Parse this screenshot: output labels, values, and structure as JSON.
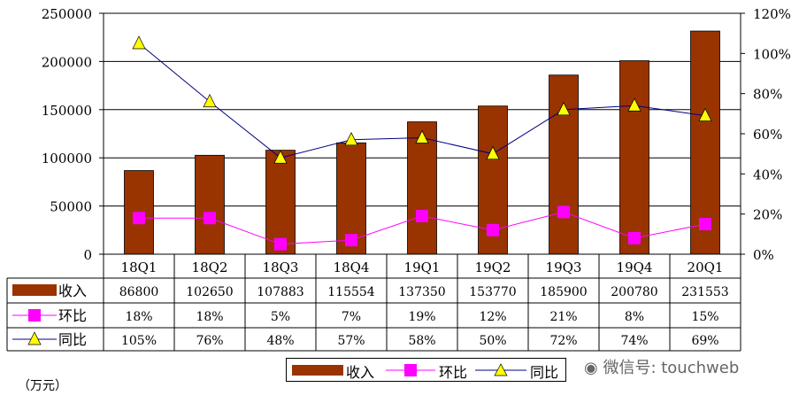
{
  "chart_data": {
    "type": "bar+line",
    "categories": [
      "18Q1",
      "18Q2",
      "18Q3",
      "18Q4",
      "19Q1",
      "19Q2",
      "19Q3",
      "19Q4",
      "20Q1"
    ],
    "series": [
      {
        "name": "收入",
        "type": "bar",
        "axis": "left",
        "color": "#993300",
        "values": [
          86800,
          102650,
          107883,
          115554,
          137350,
          153770,
          185900,
          200780,
          231553
        ],
        "labels": [
          "86800",
          "102650",
          "107883",
          "115554",
          "137350",
          "153770",
          "185900",
          "200780",
          "231553"
        ]
      },
      {
        "name": "环比",
        "type": "line",
        "axis": "right",
        "color": "#ff00ff",
        "marker": "square",
        "values": [
          18,
          18,
          5,
          7,
          19,
          12,
          21,
          8,
          15
        ],
        "labels": [
          "18%",
          "18%",
          "5%",
          "7%",
          "19%",
          "12%",
          "21%",
          "8%",
          "15%"
        ]
      },
      {
        "name": "同比",
        "type": "line",
        "axis": "right",
        "color": "#000080",
        "marker": "triangle",
        "marker_color": "#ffff00",
        "values": [
          105,
          76,
          48,
          57,
          58,
          50,
          72,
          74,
          69
        ],
        "labels": [
          "105%",
          "76%",
          "48%",
          "57%",
          "58%",
          "50%",
          "72%",
          "74%",
          "69%"
        ]
      }
    ],
    "y_left": {
      "min": 0,
      "max": 250000,
      "ticks": [
        "0",
        "50000",
        "100000",
        "150000",
        "200000",
        "250000"
      ]
    },
    "y_right": {
      "min": 0,
      "max": 120,
      "ticks": [
        "0%",
        "20%",
        "40%",
        "60%",
        "80%",
        "100%",
        "120%"
      ]
    },
    "gridlines": true,
    "legend_position": "bottom",
    "data_table": true
  },
  "unit_note": "（万元）",
  "watermark": "微信号: touchweb"
}
